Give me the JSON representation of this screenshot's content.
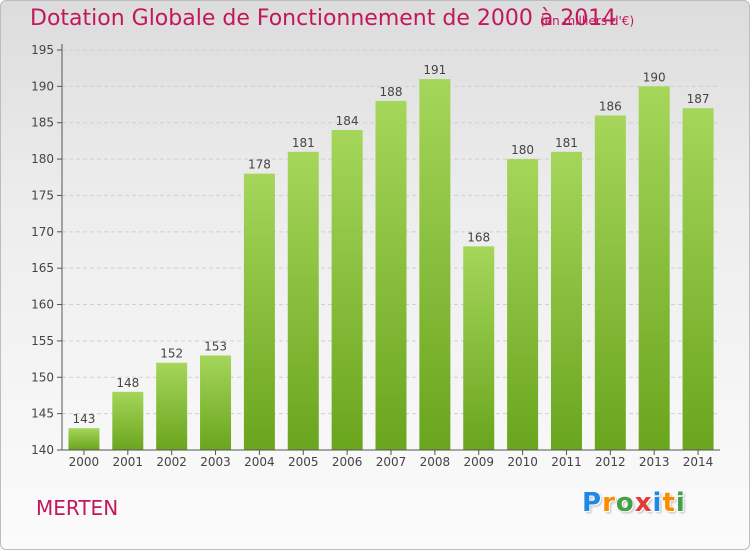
{
  "title": "Dotation Globale de Fonctionnement de 2000 à 2014",
  "subtitle": "(en milliers d'€)",
  "commune": "MERTEN",
  "logo": {
    "text": "Proxiti",
    "letters": [
      {
        "char": "P",
        "color": "#1e88e5"
      },
      {
        "char": "r",
        "color": "#fb8c00"
      },
      {
        "char": "o",
        "color": "#43a047"
      },
      {
        "char": "x",
        "color": "#e53935"
      },
      {
        "char": "i",
        "color": "#1e88e5"
      },
      {
        "char": "t",
        "color": "#fb8c00"
      },
      {
        "char": "i",
        "color": "#43a047"
      }
    ]
  },
  "colors": {
    "title": "#c2185b",
    "bar_light": "#a5d65a",
    "bar_dark": "#6aa51e",
    "axis": "#555555",
    "grid": "#d0d0d0"
  },
  "chart_data": {
    "type": "bar",
    "categories": [
      "2000",
      "2001",
      "2002",
      "2003",
      "2004",
      "2005",
      "2006",
      "2007",
      "2008",
      "2009",
      "2010",
      "2011",
      "2012",
      "2013",
      "2014"
    ],
    "values": [
      143,
      148,
      152,
      153,
      178,
      181,
      184,
      188,
      191,
      168,
      180,
      181,
      186,
      190,
      187
    ],
    "ylim": [
      140,
      195
    ],
    "yticks": [
      140,
      145,
      150,
      155,
      160,
      165,
      170,
      175,
      180,
      185,
      190,
      195
    ],
    "grid": true,
    "data_labels": true
  }
}
